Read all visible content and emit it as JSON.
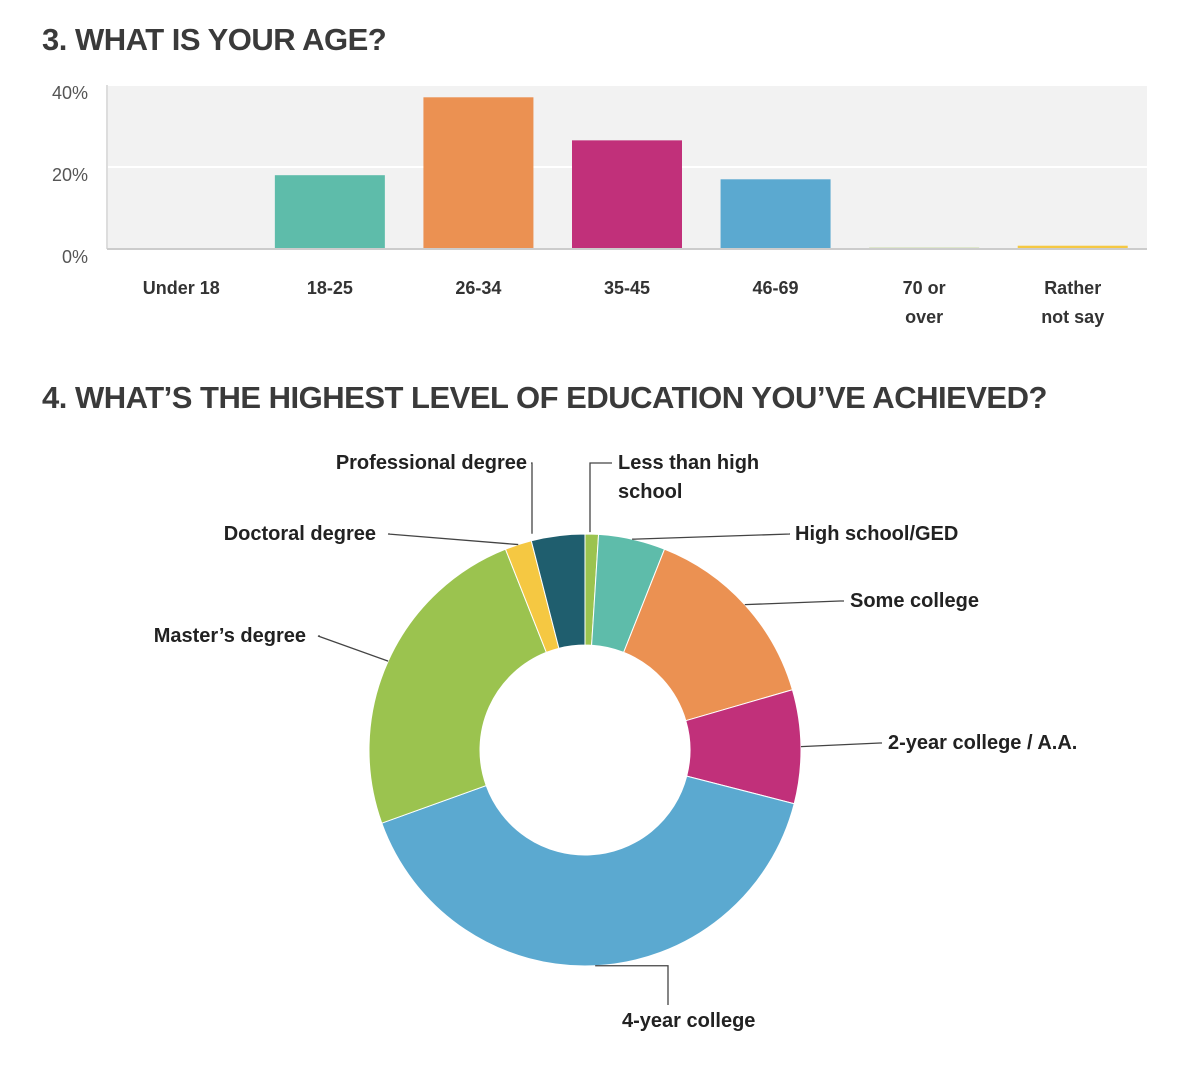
{
  "chart_data": [
    {
      "type": "bar",
      "title": "3. WHAT IS YOUR AGE?",
      "categories": [
        "Under 18",
        "18-25",
        "26-34",
        "35-45",
        "46-69",
        "70 or over",
        "Rather not say"
      ],
      "values": [
        0.2,
        18,
        37,
        26.5,
        17,
        0.3,
        0.8
      ],
      "colors": [
        "#9bc34f",
        "#5ebcaa",
        "#eb9152",
        "#c1307a",
        "#5ba9d0",
        "#9bc34f",
        "#f5c842"
      ],
      "ylim": [
        0,
        40
      ],
      "yticks": [
        {
          "value": 0,
          "label": "0%"
        },
        {
          "value": 20,
          "label": "20%"
        },
        {
          "value": 40,
          "label": "40%"
        }
      ],
      "grid": true
    },
    {
      "type": "donut",
      "title": "4. WHAT’S THE HIGHEST LEVEL OF EDUCATION YOU’VE ACHIEVED?",
      "categories": [
        "Less than high school",
        "High school/GED",
        "Some college",
        "2-year college / A.A.",
        "4-year college",
        "Master’s degree",
        "Doctoral degree",
        "Professional degree"
      ],
      "values": [
        1,
        5,
        14.5,
        8.5,
        40.5,
        24.5,
        2,
        4
      ],
      "colors": [
        "#9bc34f",
        "#5ebcaa",
        "#eb9152",
        "#c1307a",
        "#5ba9d0",
        "#9bc34f",
        "#f5c842",
        "#1f5e6e"
      ]
    }
  ]
}
